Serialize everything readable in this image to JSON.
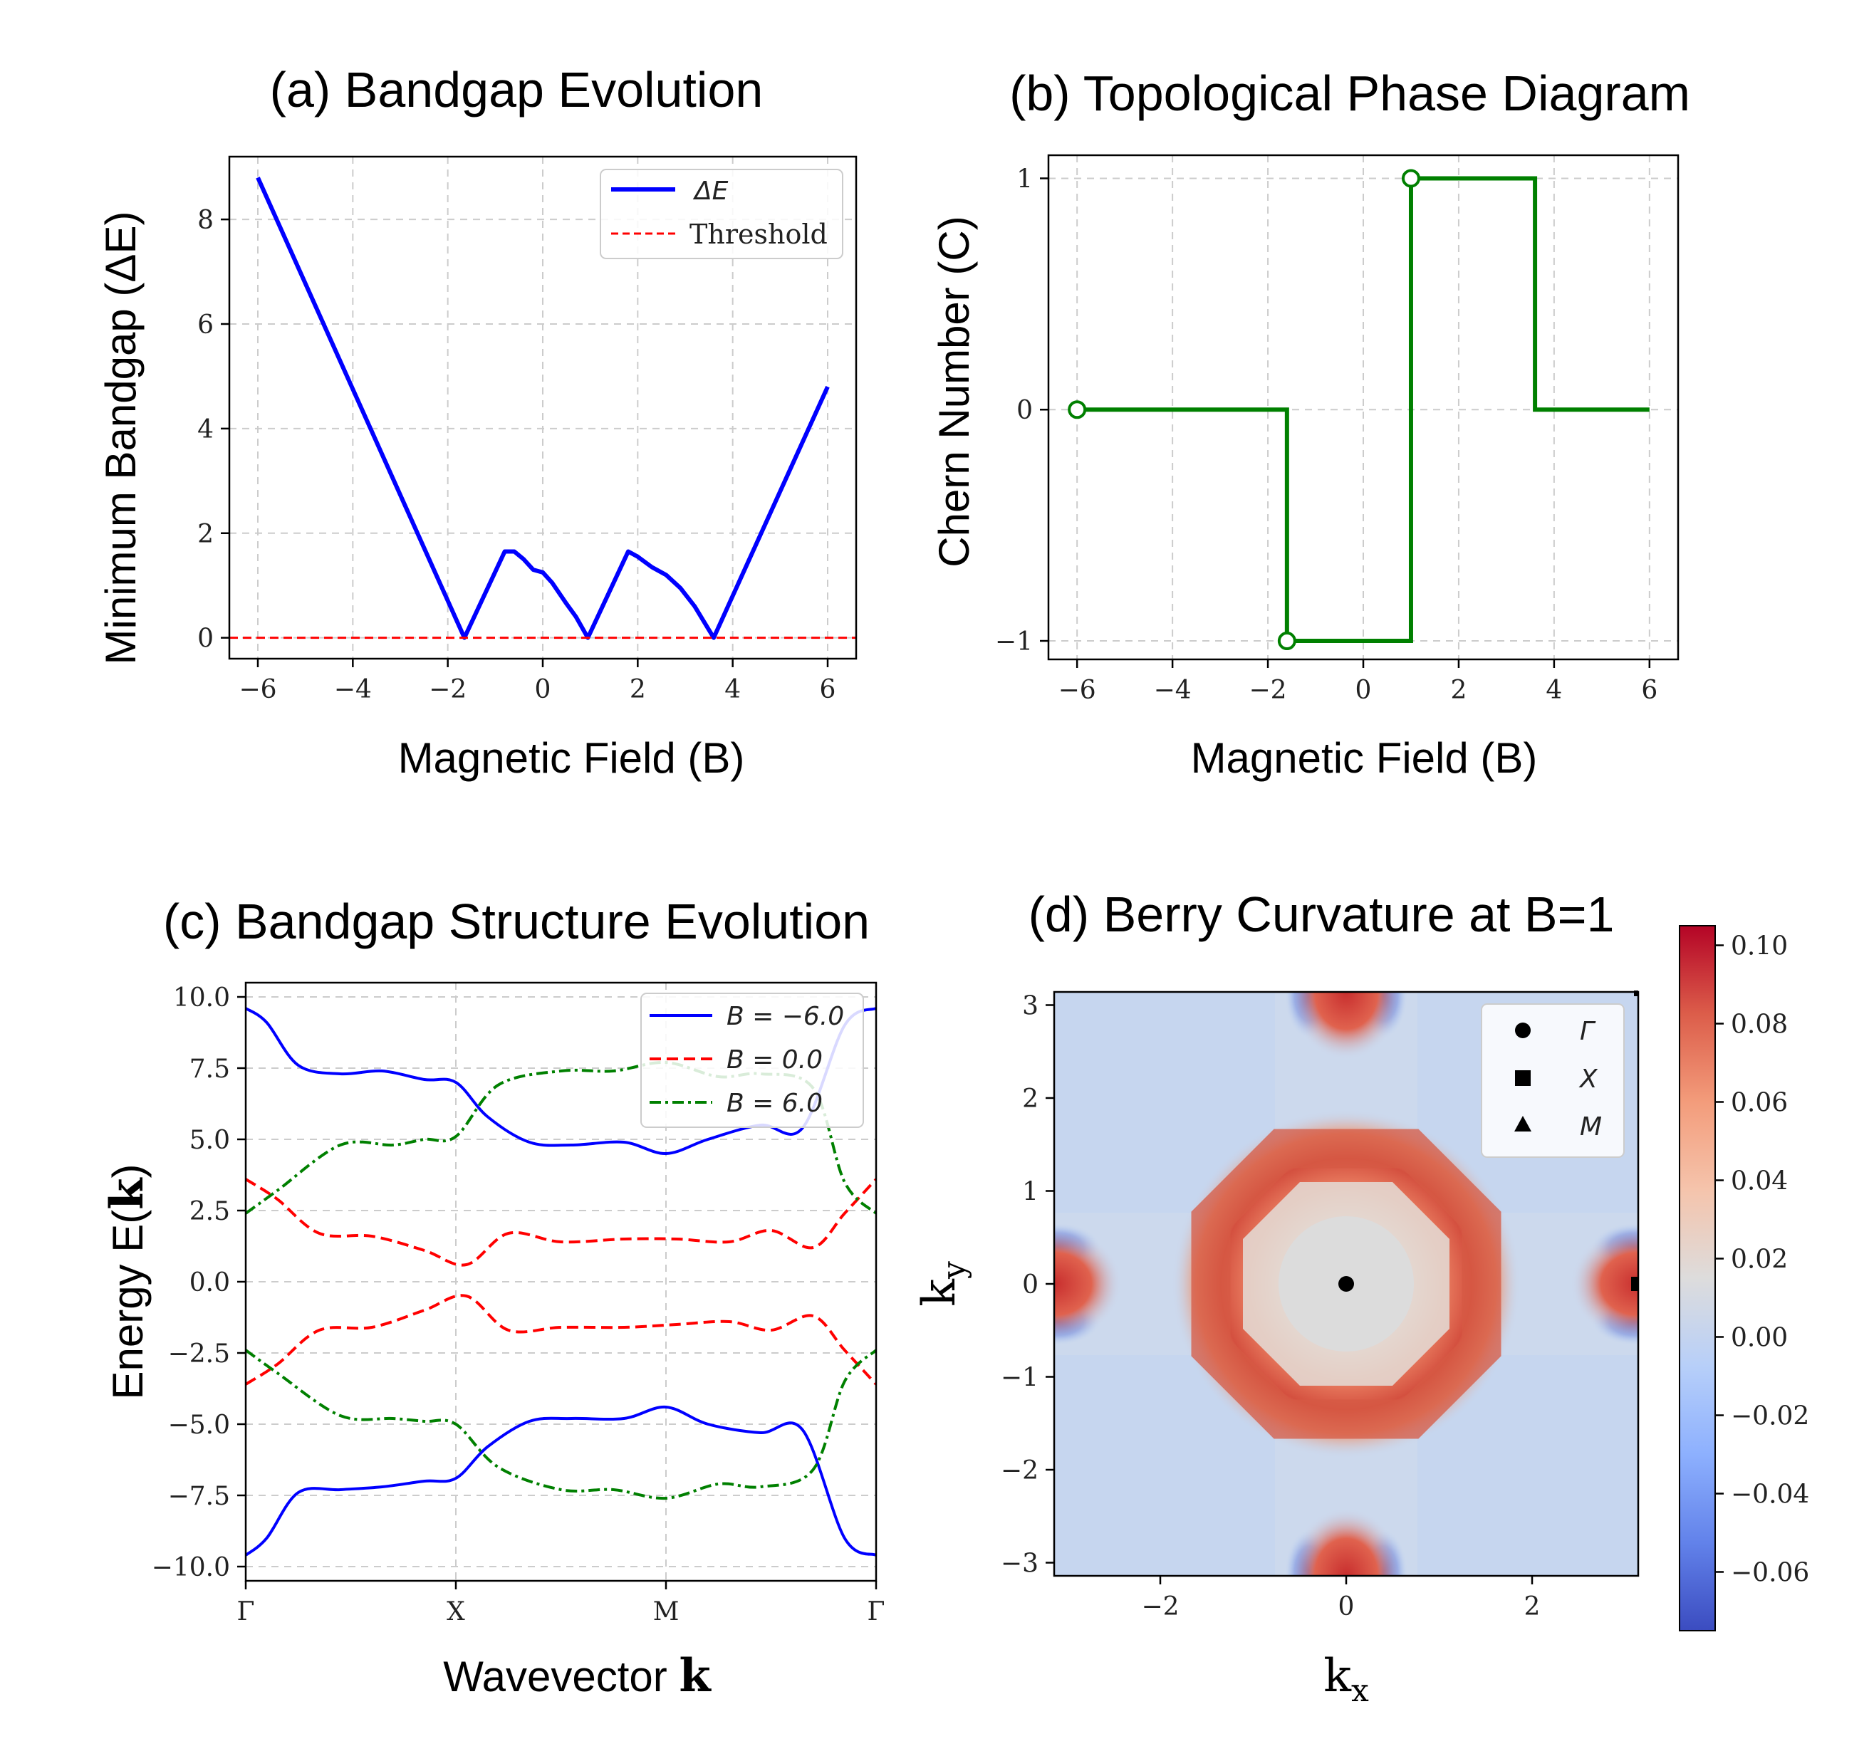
{
  "chart_data": [
    {
      "id": "a",
      "type": "line",
      "title": "(a) Bandgap Evolution",
      "xlabel": "Magnetic Field (B)",
      "ylabel": "Minimum Bandgap (ΔE)",
      "xlim": [
        -6.6,
        6.6
      ],
      "ylim": [
        -0.4,
        9.2
      ],
      "xticks": [
        -6,
        -4,
        -2,
        0,
        2,
        4,
        6
      ],
      "yticks": [
        0,
        2,
        4,
        6,
        8
      ],
      "xtick_labels": [
        "−6",
        "−4",
        "−2",
        "0",
        "2",
        "4",
        "6"
      ],
      "ytick_labels": [
        "0",
        "2",
        "4",
        "6",
        "8"
      ],
      "grid": true,
      "legend_position": "upper-right",
      "series": [
        {
          "name": "ΔE",
          "color": "#0000ff",
          "style": "solid",
          "x": [
            -6.0,
            -1.65,
            -0.8,
            -0.6,
            -0.4,
            -0.2,
            0.0,
            0.2,
            0.5,
            0.7,
            0.95,
            1.8,
            2.0,
            2.3,
            2.6,
            2.9,
            3.2,
            3.6,
            6.0
          ],
          "y": [
            8.8,
            0.0,
            1.65,
            1.65,
            1.5,
            1.3,
            1.25,
            1.05,
            0.65,
            0.4,
            0.0,
            1.65,
            1.55,
            1.35,
            1.2,
            0.95,
            0.6,
            0.0,
            4.8
          ]
        },
        {
          "name": "Threshold",
          "color": "#ff0000",
          "style": "dashed",
          "x": [
            -6.6,
            6.6
          ],
          "y": [
            0,
            0
          ]
        }
      ]
    },
    {
      "id": "b",
      "type": "line",
      "title": "(b) Topological Phase Diagram",
      "xlabel": "Magnetic Field (B)",
      "ylabel": "Chern Number (C)",
      "xlim": [
        -6.6,
        6.6
      ],
      "ylim": [
        -1.08,
        1.1
      ],
      "xticks": [
        -6,
        -4,
        -2,
        0,
        2,
        4,
        6
      ],
      "yticks": [
        -1,
        0,
        1
      ],
      "xtick_labels": [
        "−6",
        "−4",
        "−2",
        "0",
        "2",
        "4",
        "6"
      ],
      "ytick_labels": [
        "−1",
        "0",
        "1"
      ],
      "grid": true,
      "series": [
        {
          "name": "",
          "color": "#008000",
          "style": "step",
          "x": [
            -6.0,
            -1.6,
            -1.6,
            1.0,
            1.0,
            3.6,
            3.6,
            6.0
          ],
          "y": [
            0,
            0,
            -1,
            -1,
            1,
            1,
            0,
            0
          ]
        }
      ],
      "markers": [
        {
          "x": -6.0,
          "y": 0
        },
        {
          "x": -1.6,
          "y": -1
        },
        {
          "x": 1.0,
          "y": 1
        }
      ]
    },
    {
      "id": "c",
      "type": "line",
      "title": "(c) Bandgap Structure Evolution",
      "xlabel": "Wavevector ",
      "xlabel_bold": "k",
      "ylabel": "Energy E(",
      "ylabel_bold": "k",
      "ylabel_end": ")",
      "xlim": [
        0,
        3
      ],
      "ylim": [
        -10.5,
        10.5
      ],
      "xticks": [
        0,
        1,
        2,
        3
      ],
      "xtick_labels": [
        "Γ",
        "X",
        "M",
        "Γ"
      ],
      "yticks": [
        -10,
        -7.5,
        -5,
        -2.5,
        0,
        2.5,
        5,
        7.5,
        10
      ],
      "ytick_labels": [
        "−10.0",
        "−7.5",
        "−5.0",
        "−2.5",
        "0.0",
        "2.5",
        "5.0",
        "7.5",
        "10.0"
      ],
      "grid": true,
      "legend_position": "upper-right",
      "series": [
        {
          "name": "B = −6.0",
          "color": "#0000ff",
          "style": "solid",
          "x": [
            0,
            0.1,
            0.25,
            0.45,
            0.65,
            0.85,
            1.0,
            1.15,
            1.35,
            1.55,
            1.8,
            2.0,
            2.2,
            2.45,
            2.65,
            2.85,
            3.0
          ],
          "y_upper": [
            9.6,
            9.1,
            7.6,
            7.3,
            7.4,
            7.1,
            7.0,
            5.8,
            4.9,
            4.8,
            4.9,
            4.5,
            5.0,
            5.5,
            5.4,
            9.0,
            9.6
          ],
          "y_lower": [
            -9.6,
            -9.0,
            -7.4,
            -7.3,
            -7.2,
            -7.0,
            -6.9,
            -5.8,
            -4.9,
            -4.8,
            -4.8,
            -4.4,
            -5.0,
            -5.3,
            -5.2,
            -9.0,
            -9.6
          ]
        },
        {
          "name": "B = 0.0",
          "color": "#ff0000",
          "style": "dashed",
          "x": [
            0,
            0.15,
            0.35,
            0.6,
            0.85,
            1.05,
            1.25,
            1.5,
            1.8,
            2.05,
            2.3,
            2.5,
            2.7,
            2.85,
            3.0
          ],
          "y_upper": [
            3.6,
            2.9,
            1.7,
            1.6,
            1.1,
            0.6,
            1.7,
            1.4,
            1.5,
            1.5,
            1.4,
            1.8,
            1.2,
            2.4,
            3.6
          ],
          "y_lower": [
            -3.6,
            -2.9,
            -1.7,
            -1.6,
            -1.0,
            -0.5,
            -1.7,
            -1.6,
            -1.6,
            -1.5,
            -1.4,
            -1.7,
            -1.2,
            -2.4,
            -3.6
          ]
        },
        {
          "name": "B = 6.0",
          "color": "#008000",
          "style": "dashdot",
          "x": [
            0,
            0.15,
            0.45,
            0.7,
            0.85,
            1.0,
            1.2,
            1.5,
            1.75,
            2.0,
            2.25,
            2.45,
            2.7,
            2.85,
            3.0
          ],
          "y_upper": [
            2.4,
            3.2,
            4.8,
            4.8,
            5.0,
            5.1,
            6.9,
            7.4,
            7.4,
            7.7,
            7.2,
            7.3,
            6.8,
            3.5,
            2.4
          ],
          "y_lower": [
            -2.4,
            -3.2,
            -4.7,
            -4.8,
            -4.9,
            -5.0,
            -6.5,
            -7.3,
            -7.3,
            -7.6,
            -7.1,
            -7.2,
            -6.6,
            -3.5,
            -2.4
          ]
        }
      ]
    },
    {
      "id": "d",
      "type": "heatmap",
      "title": "(d) Berry Curvature at B=1",
      "xlabel": "k",
      "xlabel_sub": "x",
      "ylabel": "k",
      "ylabel_sub": "y",
      "xlim": [
        -3.1416,
        3.1416
      ],
      "ylim": [
        -3.1416,
        3.1416
      ],
      "xticks": [
        -2,
        0,
        2
      ],
      "xtick_labels": [
        "−2",
        "0",
        "2"
      ],
      "yticks": [
        -3,
        -2,
        -1,
        0,
        1,
        2,
        3
      ],
      "ytick_labels": [
        "−3",
        "−2",
        "−1",
        "0",
        "1",
        "2",
        "3"
      ],
      "colormap": "coolwarm",
      "vmin": -0.075,
      "vmax": 0.105,
      "colorbar_ticks": [
        0.1,
        0.08,
        0.06,
        0.04,
        0.02,
        0.0,
        -0.02,
        -0.04,
        -0.06
      ],
      "colorbar_labels": [
        "0.10",
        "0.08",
        "0.06",
        "0.04",
        "0.02",
        "0.00",
        "−0.02",
        "−0.04",
        "−0.06"
      ],
      "legend_position": "upper-right",
      "points": [
        {
          "name": "Γ",
          "marker": "circle",
          "x": 0,
          "y": 0
        },
        {
          "name": "X",
          "marker": "square",
          "x": 3.1416,
          "y": 0
        },
        {
          "name": "M",
          "marker": "triangle",
          "x": 3.1416,
          "y": 3.1416
        }
      ]
    }
  ]
}
